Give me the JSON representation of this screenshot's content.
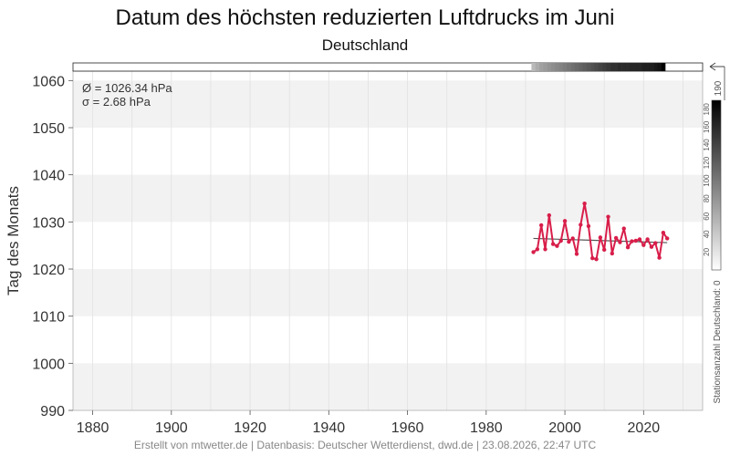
{
  "header": {
    "title": "Datum des höchsten reduzierten Luftdrucks im Juni",
    "subtitle": "Deutschland"
  },
  "footer": {
    "text": "Erstellt von mtwetter.de | Datenbasis: Deutscher Wetterdienst, dwd.de | 23.08.2026, 22:47 UTC"
  },
  "stats": {
    "mean_label": "Ø = 1026.34 hPa",
    "sd_label": "σ = 2.68 hPa"
  },
  "colors": {
    "series": "#d81e4a",
    "trend": "#555555",
    "band": "#f2f2f2",
    "grid": "#e2e2e2"
  },
  "chart_data": {
    "type": "line",
    "title": "Datum des höchsten reduzierten Luftdrucks im Juni",
    "subtitle": "Deutschland",
    "xlabel": "",
    "ylabel": "Tag des Monats",
    "xlim": [
      1875,
      2035
    ],
    "ylim": [
      990,
      1062
    ],
    "x_ticks": [
      1880,
      1900,
      1920,
      1940,
      1960,
      1980,
      2000,
      2020
    ],
    "y_ticks": [
      990,
      1000,
      1010,
      1020,
      1030,
      1040,
      1050,
      1060
    ],
    "grid": true,
    "series": [
      {
        "x": [
          1992,
          1993,
          1994,
          1995,
          1996,
          1997,
          1998,
          1999,
          2000,
          2001,
          2002,
          2003,
          2004,
          2005,
          2006,
          2007,
          2008,
          2009,
          2010,
          2011,
          2012,
          2013,
          2014,
          2015,
          2016,
          2017,
          2018,
          2019,
          2020,
          2021,
          2022,
          2023,
          2024,
          2025,
          2026
        ],
        "values": [
          1023.6,
          1024.2,
          1029.3,
          1024.2,
          1031.4,
          1025.3,
          1024.9,
          1026.0,
          1030.2,
          1025.8,
          1026.5,
          1023.2,
          1029.4,
          1033.9,
          1029.1,
          1022.3,
          1022.1,
          1026.7,
          1024.1,
          1031.1,
          1023.3,
          1026.6,
          1025.7,
          1028.6,
          1024.6,
          1025.9,
          1026.0,
          1026.3,
          1025.1,
          1026.3,
          1024.7,
          1025.5,
          1022.4,
          1027.7,
          1026.5
        ]
      }
    ],
    "trend": {
      "x": [
        1992,
        2026
      ],
      "values": [
        1026.5,
        1025.6
      ]
    },
    "station_count_bar": {
      "label": "Stationsanzahl Deutschland: 0",
      "scale_ticks": [
        0,
        20,
        40,
        60,
        80,
        100,
        120,
        140,
        160,
        180
      ],
      "scale_max_label": "190",
      "x": [
        1992,
        1993,
        1994,
        1995,
        1996,
        1997,
        1998,
        1999,
        2000,
        2001,
        2002,
        2003,
        2004,
        2005,
        2006,
        2007,
        2008,
        2009,
        2010,
        2011,
        2012,
        2013,
        2014,
        2015,
        2016,
        2017,
        2018,
        2019,
        2020,
        2021,
        2022,
        2023,
        2024,
        2025,
        2026
      ],
      "counts": [
        40,
        50,
        60,
        65,
        70,
        75,
        80,
        85,
        90,
        95,
        100,
        105,
        110,
        115,
        120,
        125,
        130,
        135,
        140,
        145,
        150,
        150,
        155,
        155,
        155,
        160,
        160,
        160,
        165,
        165,
        165,
        170,
        175,
        190,
        0
      ]
    }
  }
}
